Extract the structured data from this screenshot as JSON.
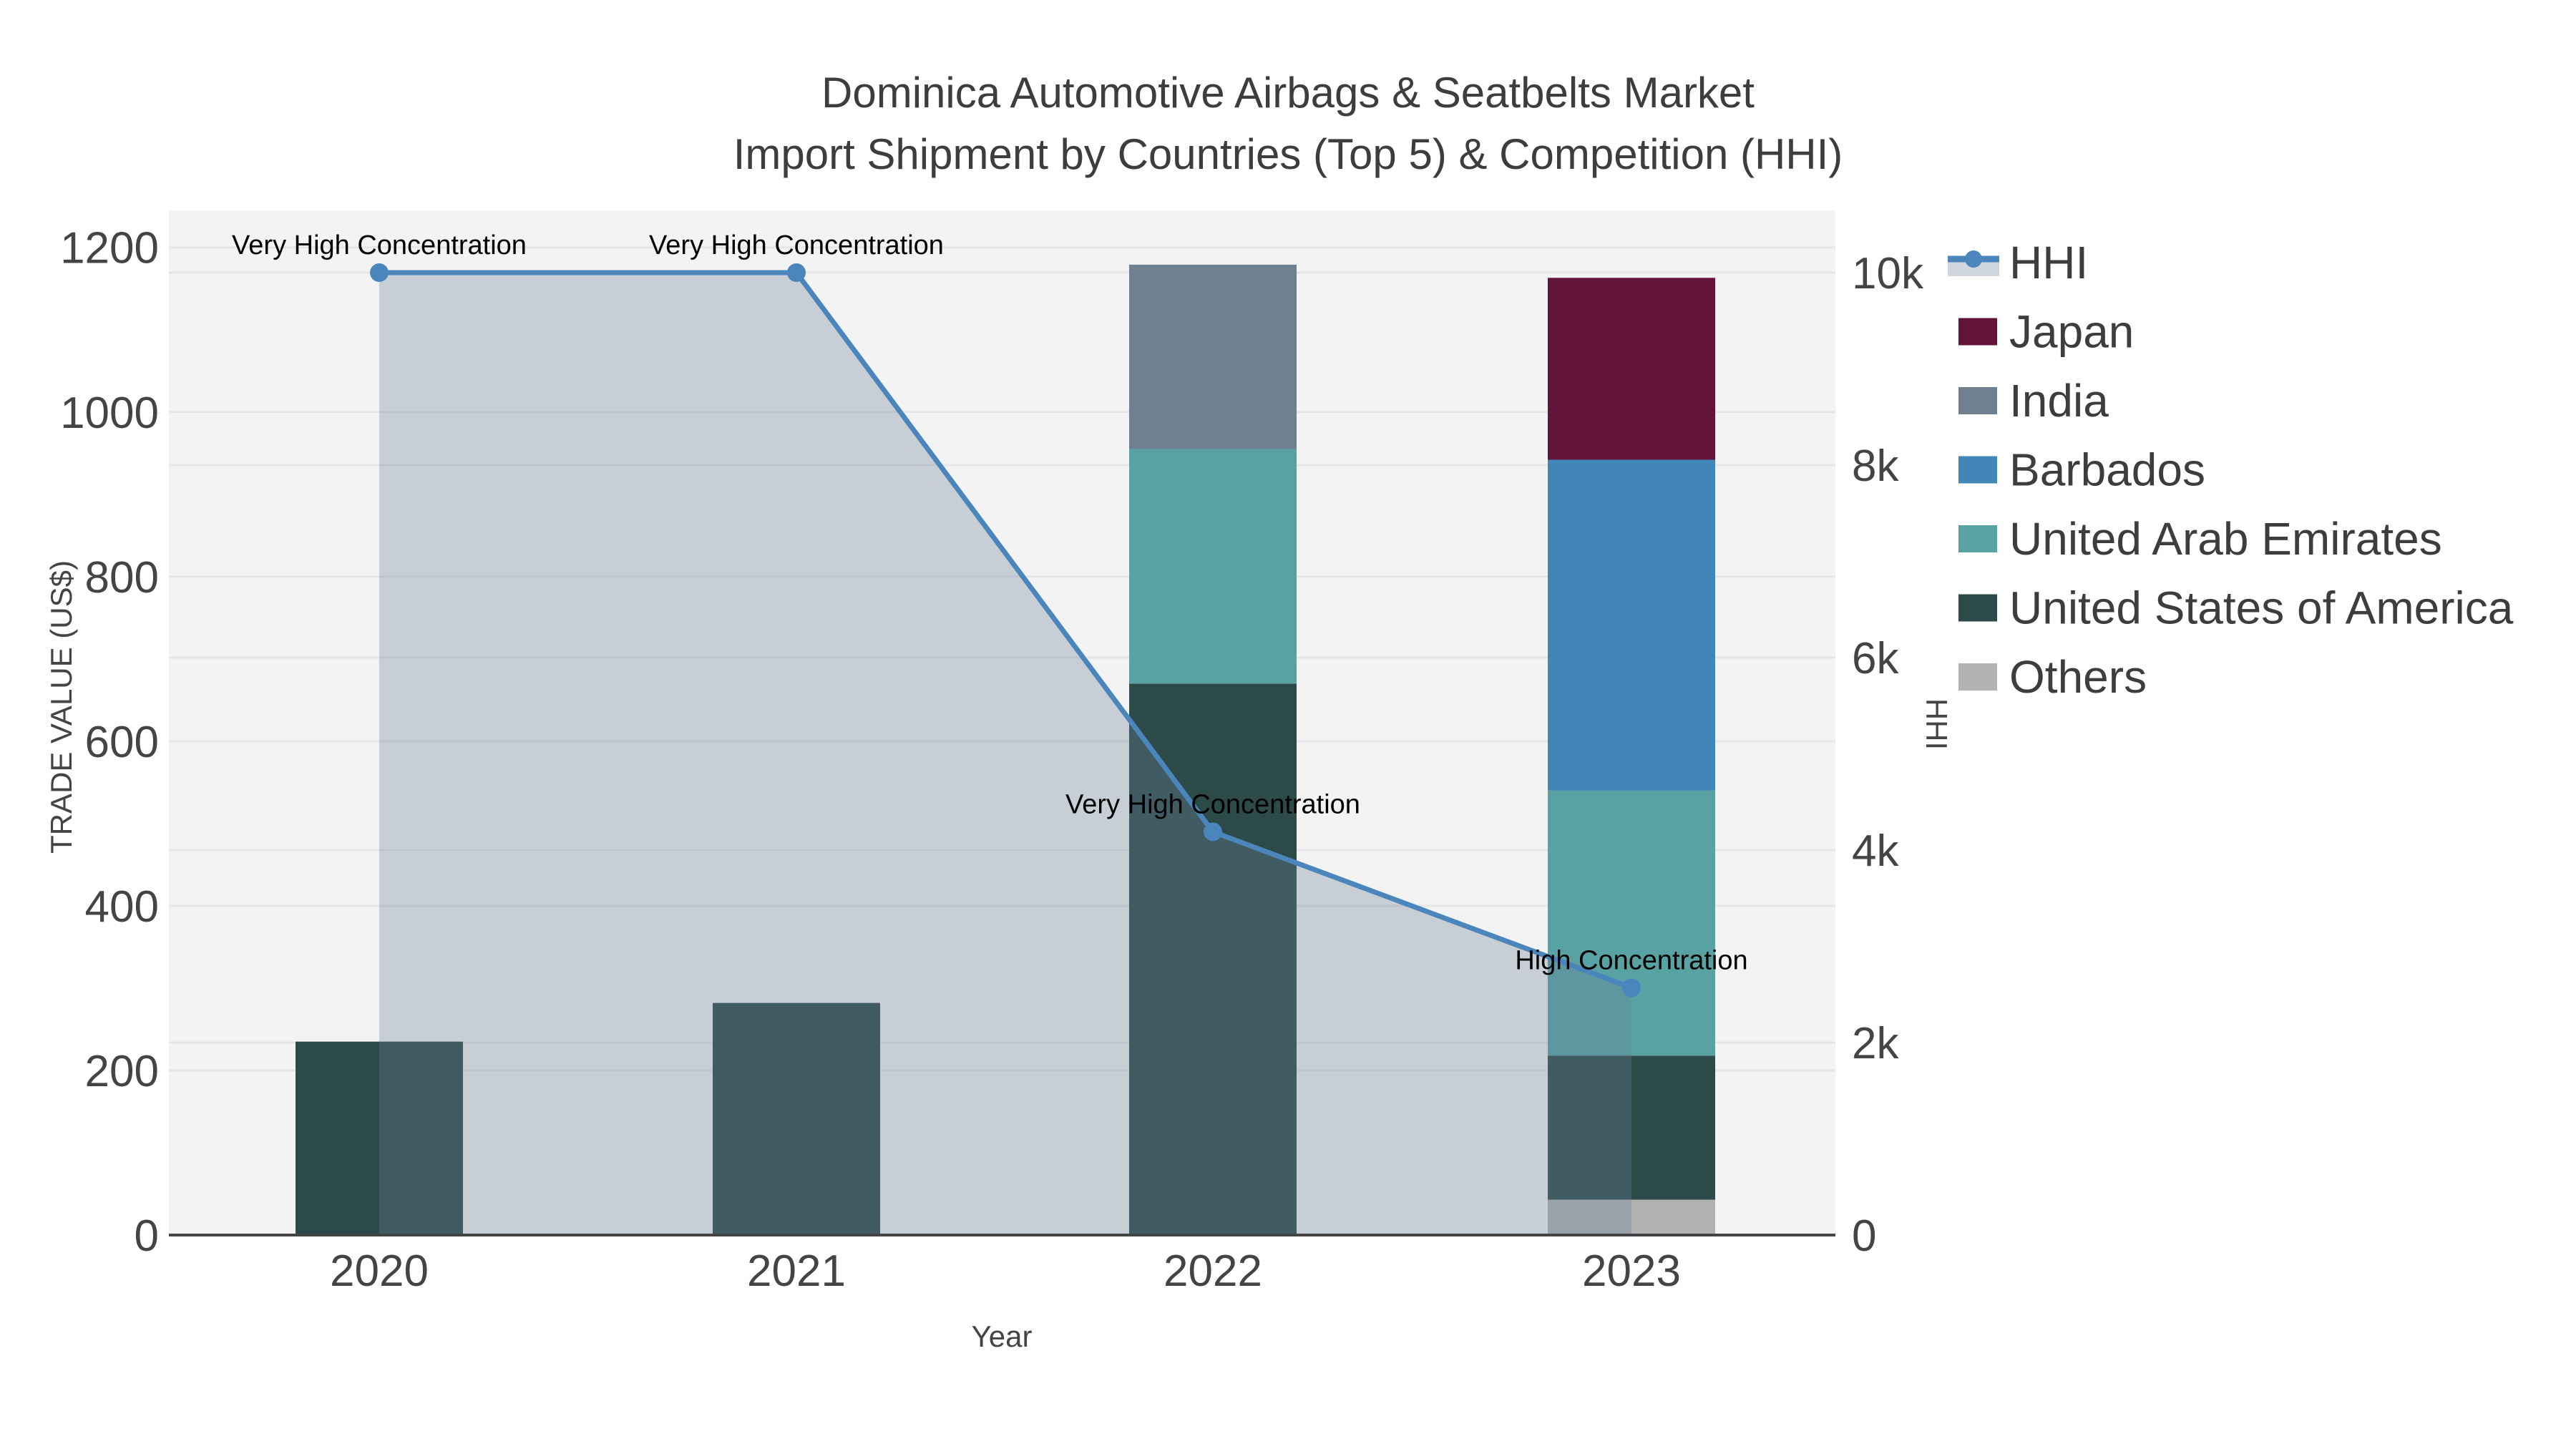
{
  "title": {
    "line1": "Dominica Automotive Airbags & Seatbelts Market",
    "line2": "Import Shipment by Countries (Top 5) & Competition (HHI)"
  },
  "chart_data": {
    "type": "combo: stacked-bar (trade value) + line-area (HHI)",
    "categories": [
      "2020",
      "2021",
      "2022",
      "2023"
    ],
    "series": [
      {
        "name": "Japan",
        "color": "#621539",
        "values": [
          0,
          0,
          0,
          221
        ]
      },
      {
        "name": "India",
        "color": "#6f8191",
        "values": [
          0,
          0,
          224,
          0
        ]
      },
      {
        "name": "Barbados",
        "color": "#4286b8",
        "values": [
          0,
          0,
          0,
          402
        ]
      },
      {
        "name": "United Arab Emirates",
        "color": "#58a2a3",
        "values": [
          0,
          0,
          285,
          322
        ]
      },
      {
        "name": "United States of America",
        "color": "#2b4a48",
        "values": [
          235,
          282,
          670,
          175
        ]
      },
      {
        "name": "Others",
        "color": "#b2b2b2",
        "values": [
          0,
          0,
          0,
          43
        ]
      }
    ],
    "stack_order": [
      "Others",
      "United States of America",
      "United Arab Emirates",
      "Barbados",
      "India",
      "Japan"
    ],
    "hhi": {
      "name": "HHI",
      "color": "#4a86bb",
      "area_fill": "rgba(108,126,152,0.32)",
      "values": [
        10000,
        10000,
        4190,
        2570
      ],
      "annotations": [
        "Very High Concentration",
        "Very High Concentration",
        "Very High Concentration",
        "High Concentration"
      ]
    },
    "x_axis": {
      "title": "Year"
    },
    "left_axis": {
      "title": "TRADE VALUE (US$)",
      "tick_values": [
        0,
        200,
        400,
        600,
        800,
        1000,
        1200
      ],
      "tick_labels": [
        "0",
        "200",
        "400",
        "600",
        "800",
        "1000",
        "1200"
      ],
      "range": [
        0,
        1245
      ]
    },
    "right_axis": {
      "title": "HHI",
      "tick_values": [
        0,
        2000,
        4000,
        6000,
        8000,
        10000
      ],
      "tick_labels": [
        "0",
        "2k",
        "4k",
        "6k",
        "8k",
        "10k"
      ],
      "range": [
        0,
        10650
      ]
    },
    "legend_position": "top-right-outside",
    "grid": true
  }
}
